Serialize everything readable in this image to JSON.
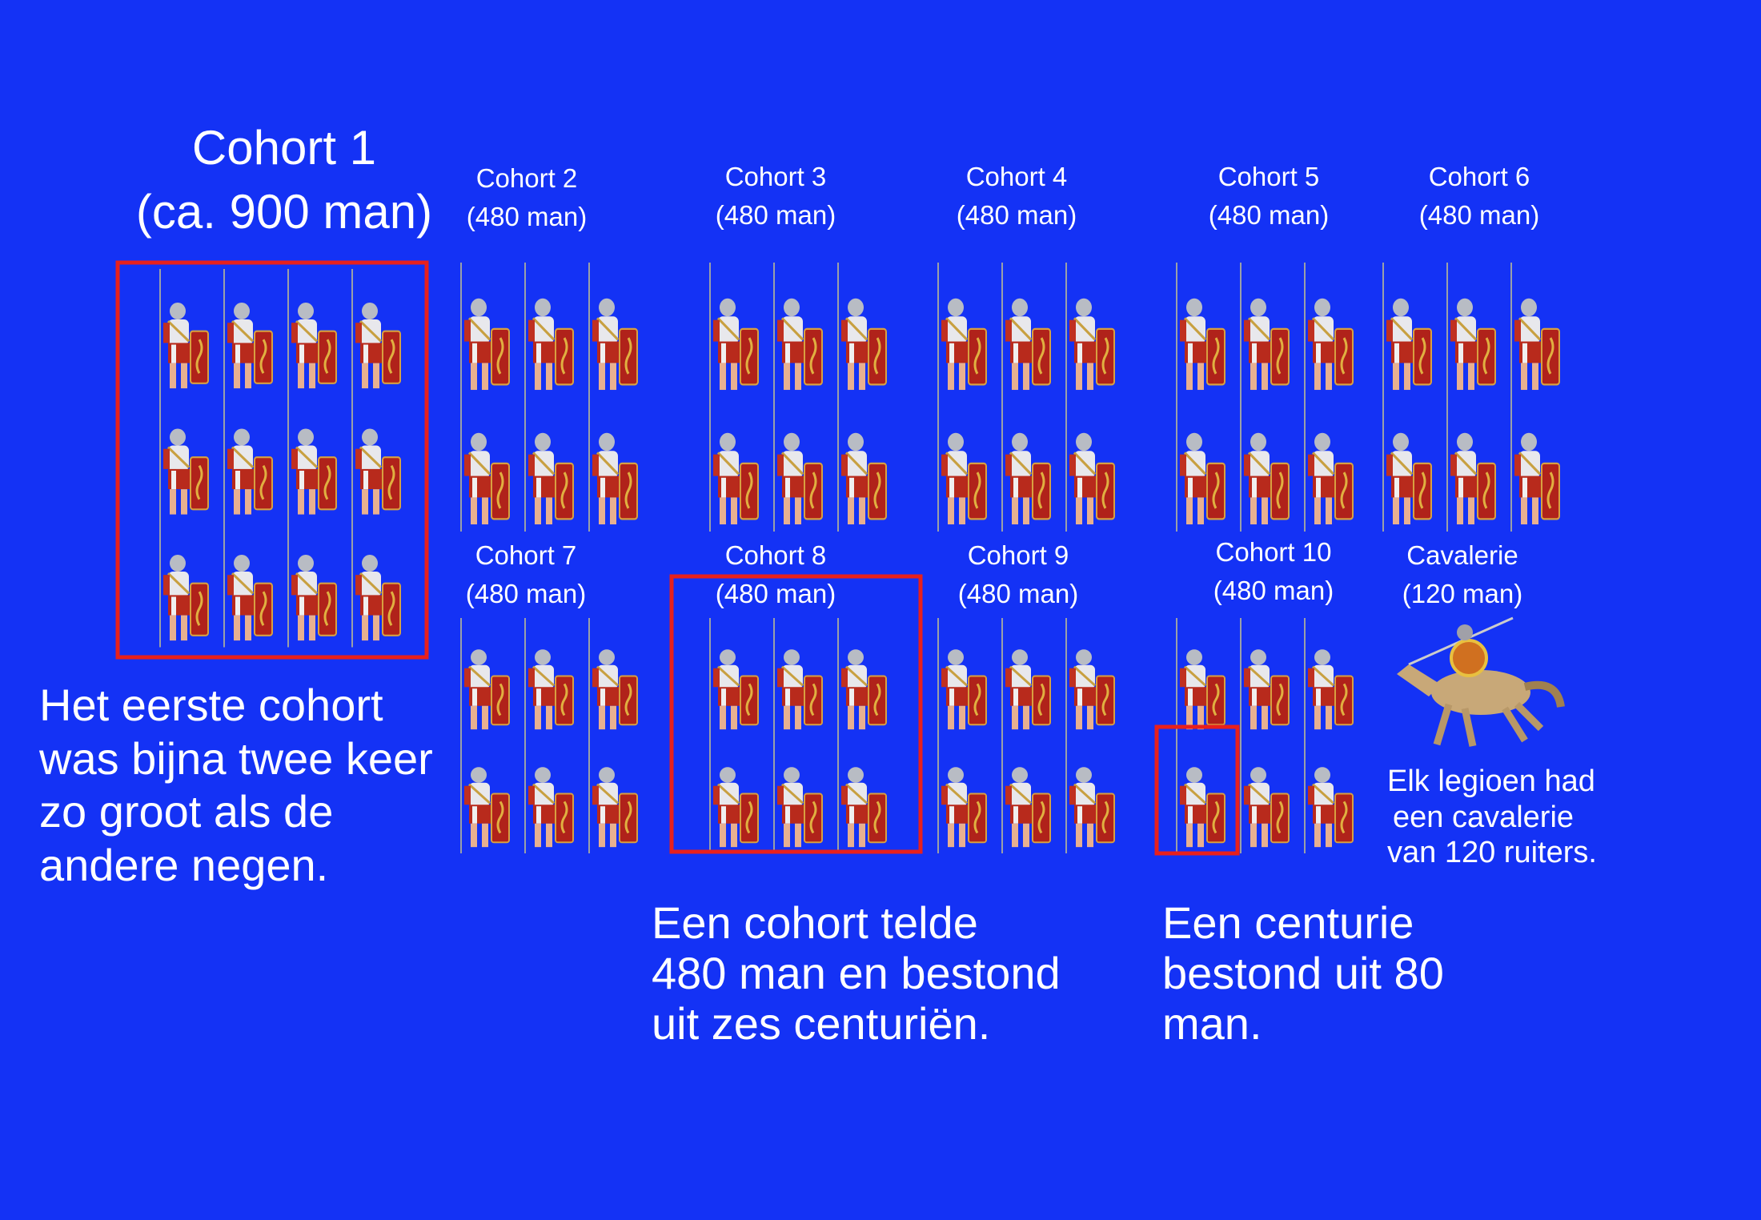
{
  "cohorts": [
    {
      "name": "Cohort 1",
      "size": "(ca. 900 man)"
    },
    {
      "name": "Cohort 2",
      "size": "(480 man)"
    },
    {
      "name": "Cohort 3",
      "size": "(480 man)"
    },
    {
      "name": "Cohort 4",
      "size": "(480 man)"
    },
    {
      "name": "Cohort 5",
      "size": "(480 man)"
    },
    {
      "name": "Cohort 6",
      "size": "(480 man)"
    },
    {
      "name": "Cohort 7",
      "size": "(480 man)"
    },
    {
      "name": "Cohort 8",
      "size": "(480 man)"
    },
    {
      "name": "Cohort 9",
      "size": "(480 man)"
    },
    {
      "name": "Cohort 10",
      "size": "(480 man)"
    }
  ],
  "cavalry": {
    "name": "Cavalerie",
    "size": "(120 man)",
    "note": [
      "Elk legioen had",
      "een cavalerie",
      "van 120 ruiters."
    ]
  },
  "notes": {
    "first_cohort": [
      "Het eerste cohort",
      "was bijna twee keer",
      "zo groot als de",
      "andere negen."
    ],
    "cohort": [
      "Een cohort telde",
      "480 man en bestond",
      "uit zes centuriën."
    ],
    "centurie": [
      "Een centurie",
      "bestond uit 80",
      "man."
    ]
  }
}
